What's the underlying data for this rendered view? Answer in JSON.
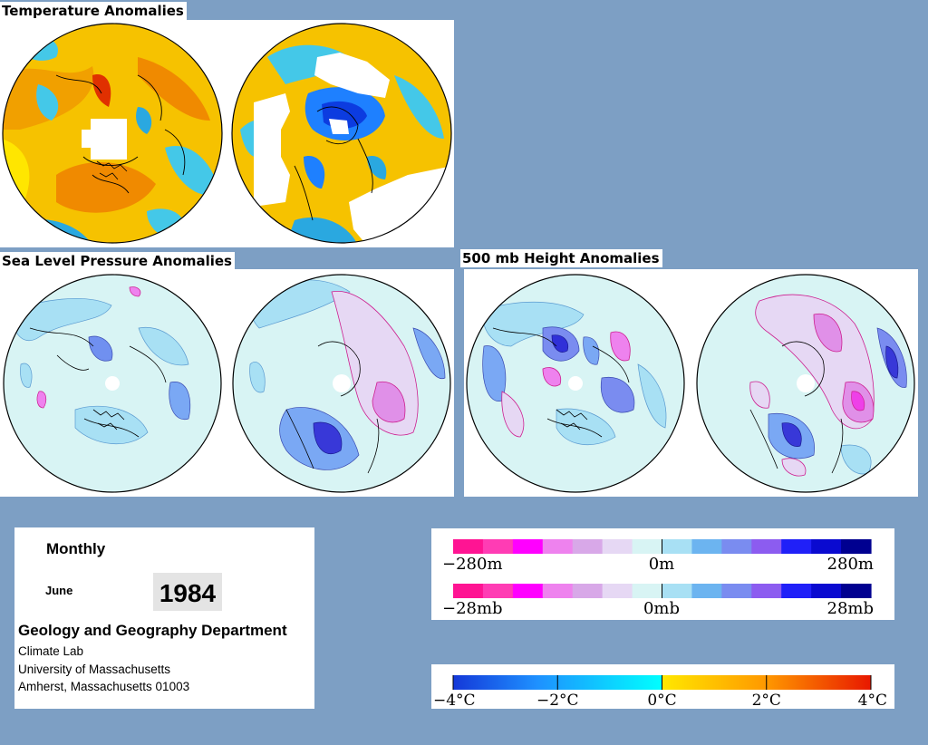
{
  "sections": {
    "temperature": {
      "title": "Temperature Anomalies"
    },
    "slp": {
      "title": "Sea Level Pressure Anomalies"
    },
    "height": {
      "title": "500 mb Height Anomalies"
    }
  },
  "info": {
    "period": "Monthly",
    "month": "June",
    "year": "1984",
    "department": "Geology and Geography Department",
    "lab": "Climate Lab",
    "university": "University of Massachusetts",
    "address": "Amherst, Massachusetts 01003"
  },
  "legends": {
    "height": {
      "min_label": "−280m",
      "mid_label": "0m",
      "max_label": "280m"
    },
    "pressure": {
      "min_label": "−28mb",
      "mid_label": "0mb",
      "max_label": "28mb"
    },
    "temperature": {
      "labels": [
        "−4°C",
        "−2°C",
        "0°C",
        "2°C",
        "4°C"
      ]
    }
  },
  "colors": {
    "background": "#7d9fc4",
    "anomaly_scale": [
      "#ff1493",
      "#ff3cb4",
      "#ff00ff",
      "#ee82ee",
      "#d8a8e8",
      "#e6d8f4",
      "#d8f4f4",
      "#a8e0f4",
      "#6cb4f0",
      "#7a8cf0",
      "#8c5cf0",
      "#2020f8",
      "#0a0ad0",
      "#000090"
    ],
    "temperature_scale": [
      "#1438d8",
      "#1e90ff",
      "#28b0ff",
      "#30d8ff",
      "#00ffff",
      "#ffe800",
      "#ffc000",
      "#ff9800",
      "#ff6000",
      "#e81800"
    ]
  }
}
